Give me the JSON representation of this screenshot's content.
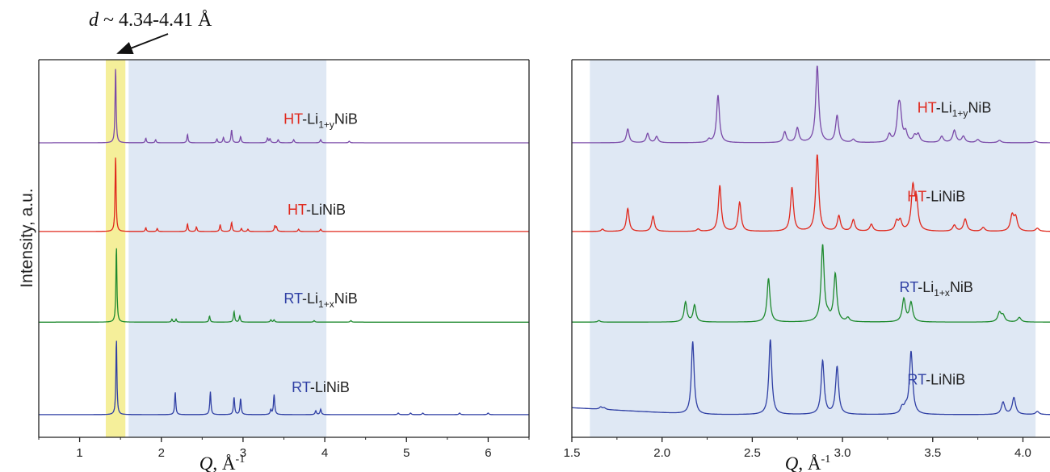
{
  "annotation": {
    "d_italic": "d",
    "text": " ~ 4.34-4.41 Å"
  },
  "ylabel": "Intensity, a.u.",
  "xlabel": {
    "q": "Q",
    "unit": ", Å",
    "exp": "-1"
  },
  "colors": {
    "RT-LiNiB": "#2f3fa4",
    "RT-Li1+xNiB": "#1e8a2e",
    "HT-LiNiB": "#e0281c",
    "HT-Li1+yNiB": "#7a4aa8",
    "prefix_HT": "#e0281c",
    "prefix_RT": "#2f3fa4",
    "yellow_band": "#f5ef9a",
    "blue_band": "#dfe8f4"
  },
  "chart_data": [
    {
      "type": "line",
      "xlabel": "Q, Å-1",
      "ylabel": "Intensity, a.u.",
      "xlim": [
        0.5,
        6.5
      ],
      "xticks": [
        1,
        2,
        3,
        4,
        5,
        6
      ],
      "highlight_regions": [
        {
          "x": [
            1.32,
            1.56
          ],
          "color": "yellow",
          "label": "d ~ 4.34-4.41 Å"
        },
        {
          "x": [
            1.6,
            4.02
          ],
          "color": "light-blue"
        }
      ],
      "series": [
        {
          "name": "HT-Li1+yNiB",
          "prefix": "HT",
          "base": "-Li",
          "sub": "1+y",
          "rest": "NiB",
          "color_key": "HT-Li1+yNiB",
          "baseline_frac": 0.78,
          "label_q": 3.95,
          "label_frac": 0.83,
          "peaks": [
            [
              1.44,
              1.0
            ],
            [
              1.81,
              0.06
            ],
            [
              1.93,
              0.04
            ],
            [
              2.32,
              0.11
            ],
            [
              2.68,
              0.05
            ],
            [
              2.76,
              0.07
            ],
            [
              2.86,
              0.17
            ],
            [
              2.97,
              0.08
            ],
            [
              3.3,
              0.06
            ],
            [
              3.33,
              0.05
            ],
            [
              3.43,
              0.04
            ],
            [
              3.62,
              0.04
            ],
            [
              3.95,
              0.04
            ],
            [
              4.3,
              0.02
            ]
          ]
        },
        {
          "name": "HT-LiNiB",
          "prefix": "HT",
          "base": "-LiNiB",
          "sub": "",
          "rest": "",
          "color_key": "HT-LiNiB",
          "baseline_frac": 0.545,
          "label_q": 3.9,
          "label_frac": 0.59,
          "peaks": [
            [
              1.44,
              1.0
            ],
            [
              1.81,
              0.05
            ],
            [
              1.95,
              0.04
            ],
            [
              2.32,
              0.1
            ],
            [
              2.43,
              0.06
            ],
            [
              2.72,
              0.09
            ],
            [
              2.86,
              0.12
            ],
            [
              2.98,
              0.04
            ],
            [
              3.06,
              0.03
            ],
            [
              3.39,
              0.07
            ],
            [
              3.41,
              0.05
            ],
            [
              3.68,
              0.03
            ],
            [
              3.95,
              0.03
            ]
          ]
        },
        {
          "name": "RT-Li1+xNiB",
          "prefix": "RT",
          "base": "-Li",
          "sub": "1+x",
          "rest": "NiB",
          "color_key": "RT-Li1+xNiB",
          "baseline_frac": 0.305,
          "label_q": 3.95,
          "label_frac": 0.355,
          "peaks": [
            [
              1.45,
              1.0
            ],
            [
              2.13,
              0.04
            ],
            [
              2.18,
              0.04
            ],
            [
              2.59,
              0.08
            ],
            [
              2.89,
              0.14
            ],
            [
              2.96,
              0.08
            ],
            [
              3.34,
              0.03
            ],
            [
              3.38,
              0.03
            ],
            [
              3.87,
              0.02
            ],
            [
              4.32,
              0.02
            ]
          ]
        },
        {
          "name": "RT-LiNiB",
          "prefix": "RT",
          "base": "-LiNiB",
          "sub": "",
          "rest": "",
          "color_key": "RT-LiNiB",
          "baseline_frac": 0.06,
          "label_q": 3.95,
          "label_frac": 0.12,
          "peaks": [
            [
              1.45,
              1.0
            ],
            [
              2.17,
              0.3
            ],
            [
              2.6,
              0.3
            ],
            [
              2.89,
              0.23
            ],
            [
              2.97,
              0.21
            ],
            [
              3.38,
              0.26
            ],
            [
              3.34,
              0.06
            ],
            [
              3.89,
              0.05
            ],
            [
              3.95,
              0.07
            ],
            [
              4.9,
              0.02
            ],
            [
              5.05,
              0.02
            ],
            [
              5.2,
              0.02
            ],
            [
              5.65,
              0.02
            ],
            [
              6.0,
              0.02
            ]
          ]
        }
      ]
    },
    {
      "type": "line",
      "xlabel": "Q, Å-1",
      "xlim": [
        1.5,
        4.15
      ],
      "xticks": [
        1.5,
        2.0,
        2.5,
        3.0,
        3.5,
        4.0
      ],
      "highlight_regions": [
        {
          "x": [
            1.6,
            4.07
          ],
          "color": "light-blue"
        }
      ],
      "series": [
        {
          "name": "HT-Li1+yNiB",
          "prefix": "HT",
          "base": "-Li",
          "sub": "1+y",
          "rest": "NiB",
          "color_key": "HT-Li1+yNiB",
          "baseline_frac": 0.78,
          "label_q": 3.62,
          "label_frac": 0.86,
          "peaks": [
            [
              1.81,
              0.18
            ],
            [
              1.92,
              0.12
            ],
            [
              1.97,
              0.08
            ],
            [
              2.26,
              0.04
            ],
            [
              2.31,
              0.62
            ],
            [
              2.68,
              0.14
            ],
            [
              2.75,
              0.19
            ],
            [
              2.86,
              1.0
            ],
            [
              2.97,
              0.35
            ],
            [
              3.06,
              0.04
            ],
            [
              3.26,
              0.1
            ],
            [
              3.31,
              0.34
            ],
            [
              3.32,
              0.32
            ],
            [
              3.35,
              0.12
            ],
            [
              3.4,
              0.08
            ],
            [
              3.42,
              0.1
            ],
            [
              3.55,
              0.08
            ],
            [
              3.62,
              0.16
            ],
            [
              3.67,
              0.08
            ],
            [
              3.75,
              0.04
            ],
            [
              3.87,
              0.03
            ],
            [
              4.07,
              0.02
            ]
          ]
        },
        {
          "name": "HT-LiNiB",
          "prefix": "HT",
          "base": "-LiNiB",
          "sub": "",
          "rest": "",
          "color_key": "HT-LiNiB",
          "baseline_frac": 0.545,
          "label_q": 3.52,
          "label_frac": 0.625,
          "peaks": [
            [
              1.67,
              0.03
            ],
            [
              1.81,
              0.3
            ],
            [
              1.95,
              0.2
            ],
            [
              2.2,
              0.03
            ],
            [
              2.32,
              0.6
            ],
            [
              2.43,
              0.38
            ],
            [
              2.72,
              0.57
            ],
            [
              2.86,
              1.0
            ],
            [
              2.98,
              0.2
            ],
            [
              3.06,
              0.15
            ],
            [
              3.16,
              0.09
            ],
            [
              3.3,
              0.12
            ],
            [
              3.32,
              0.13
            ],
            [
              3.39,
              0.55
            ],
            [
              3.41,
              0.36
            ],
            [
              3.62,
              0.08
            ],
            [
              3.68,
              0.16
            ],
            [
              3.78,
              0.05
            ],
            [
              3.94,
              0.2
            ],
            [
              3.96,
              0.17
            ],
            [
              4.08,
              0.04
            ]
          ]
        },
        {
          "name": "RT-Li1+xNiB",
          "prefix": "RT",
          "base": "-Li",
          "sub": "1+x",
          "rest": "NiB",
          "color_key": "RT-Li1+xNiB",
          "baseline_frac": 0.305,
          "label_q": 3.52,
          "label_frac": 0.385,
          "peaks": [
            [
              1.65,
              0.02
            ],
            [
              2.13,
              0.26
            ],
            [
              2.18,
              0.22
            ],
            [
              2.59,
              0.57
            ],
            [
              2.89,
              1.0
            ],
            [
              2.92,
              0.05
            ],
            [
              2.96,
              0.62
            ],
            [
              3.03,
              0.05
            ],
            [
              3.34,
              0.3
            ],
            [
              3.38,
              0.25
            ],
            [
              3.87,
              0.12
            ],
            [
              3.89,
              0.08
            ],
            [
              3.98,
              0.06
            ]
          ]
        },
        {
          "name": "RT-LiNiB",
          "prefix": "RT",
          "base": "-LiNiB",
          "sub": "",
          "rest": "",
          "color_key": "RT-LiNiB",
          "baseline_frac": 0.06,
          "label_q": 3.52,
          "label_frac": 0.14,
          "peaks": [
            [
              1.66,
              0.03
            ],
            [
              1.68,
              0.02
            ],
            [
              2.17,
              0.95
            ],
            [
              2.6,
              0.98
            ],
            [
              2.89,
              0.7
            ],
            [
              2.97,
              0.62
            ],
            [
              3.33,
              0.08
            ],
            [
              3.35,
              0.07
            ],
            [
              3.38,
              0.82
            ],
            [
              3.89,
              0.16
            ],
            [
              3.95,
              0.22
            ],
            [
              4.08,
              0.04
            ]
          ]
        }
      ]
    }
  ]
}
